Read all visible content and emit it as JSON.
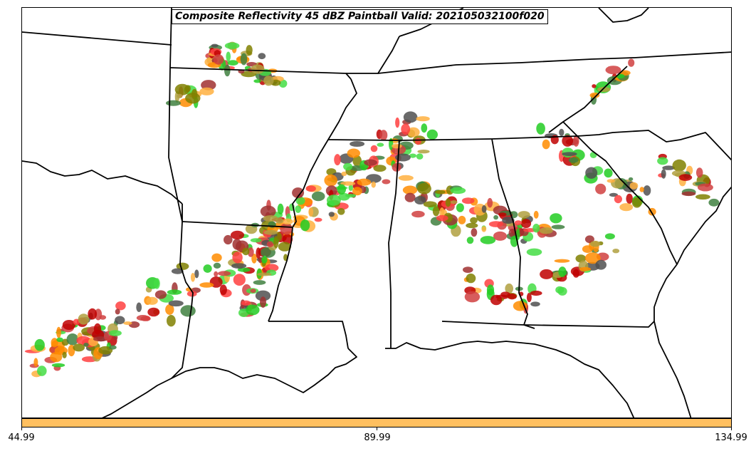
{
  "title": "Composite Reflectivity 45 dBZ Paintball Valid: 202105032100f020",
  "colorbar": {
    "color": "#ffc060",
    "tick_labels": [
      "44.99",
      "89.99",
      "134.99"
    ]
  },
  "paintball_colors": [
    "#ff4040",
    "#ff8c00",
    "#ffb040",
    "#22cc22",
    "#44dd44",
    "#b0a040",
    "#808000",
    "#a03030",
    "#c00000",
    "#505050",
    "#408040",
    "#d04040"
  ]
}
